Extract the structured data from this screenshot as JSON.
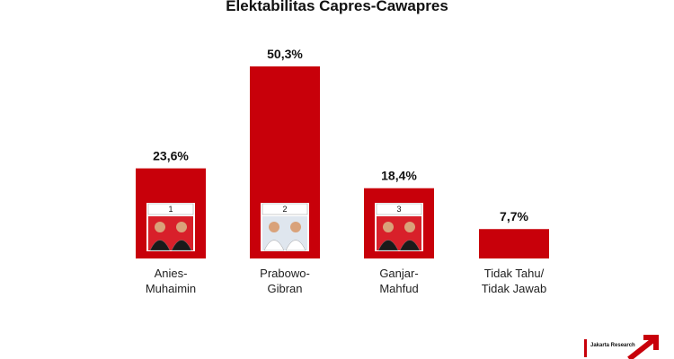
{
  "chart_data": {
    "type": "bar",
    "title": "Elektabilitas Capres-Cawapres",
    "categories": [
      "Anies-\nMuhaimin",
      "Prabowo-\nGibran",
      "Ganjar-\nMahfud",
      "Tidak Tahu/\nTidak Jawab"
    ],
    "values": [
      23.6,
      50.3,
      18.4,
      7.7
    ],
    "value_labels": [
      "23,6%",
      "50,3%",
      "18,4%",
      "7,7%"
    ],
    "candidate_numbers": [
      "1",
      "2",
      "3"
    ],
    "color": "#c8000a",
    "ylim": [
      0,
      55
    ],
    "logo": "Jakarta Research"
  }
}
